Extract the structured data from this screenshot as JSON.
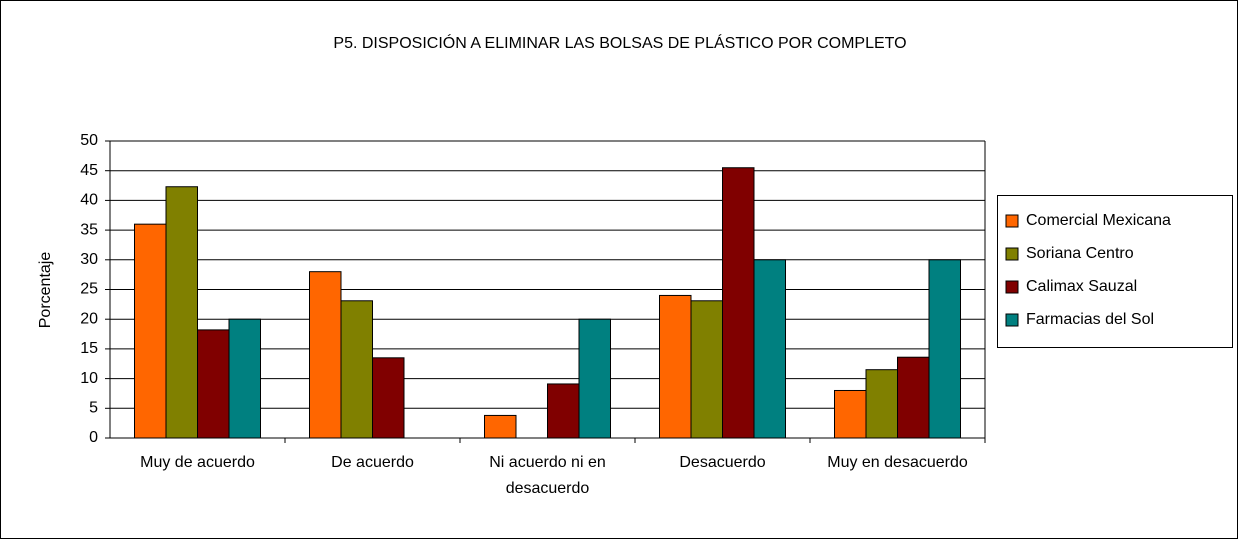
{
  "chart_data": {
    "type": "bar",
    "title": "P5. DISPOSICIÓN A ELIMINAR LAS BOLSAS DE PLÁSTICO POR COMPLETO",
    "y_label": "Porcentaje",
    "categories": [
      "Muy de acuerdo",
      "De acuerdo",
      "Ni acuerdo ni en desacuerdo",
      "Desacuerdo",
      "Muy en desacuerdo"
    ],
    "series": [
      {
        "name": "Comercial Mexicana",
        "color": "#ff6600",
        "values": [
          36,
          28,
          3.8,
          24,
          8
        ]
      },
      {
        "name": "Soriana Centro",
        "color": "#808000",
        "values": [
          42.3,
          23.1,
          0,
          23.1,
          11.5
        ]
      },
      {
        "name": "Calimax Sauzal",
        "color": "#800000",
        "values": [
          18.2,
          13.5,
          9.1,
          45.5,
          13.6
        ]
      },
      {
        "name": "Farmacias del Sol",
        "color": "#008080",
        "values": [
          20,
          0,
          20,
          30,
          30
        ]
      }
    ],
    "ylim": [
      0,
      50
    ],
    "yticks": [
      0,
      5,
      10,
      15,
      20,
      25,
      30,
      35,
      40,
      45,
      50
    ],
    "grid": true,
    "legend": "right"
  }
}
